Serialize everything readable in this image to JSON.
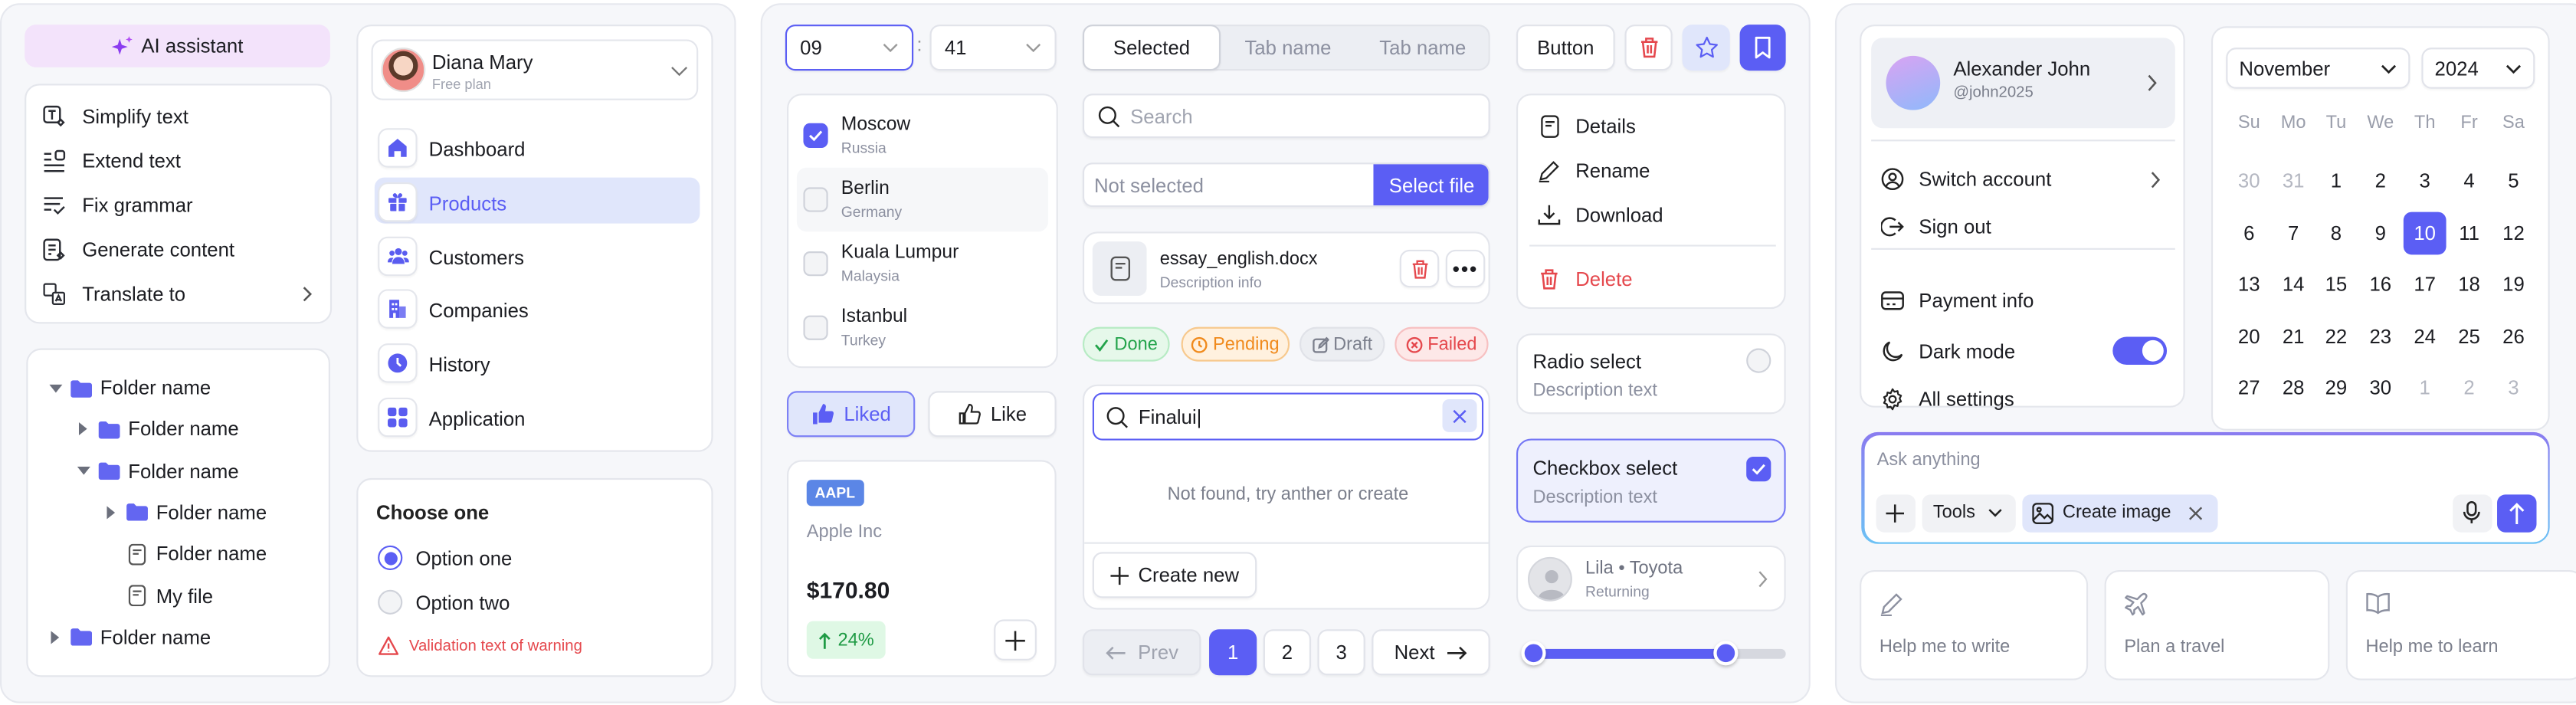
{
  "ai_assistant": {
    "button_label": "AI assistant",
    "menu": [
      {
        "label": "Simplify text",
        "icon": "text-simplify-icon"
      },
      {
        "label": "Extend text",
        "icon": "text-extend-icon"
      },
      {
        "label": "Fix grammar",
        "icon": "grammar-check-icon"
      },
      {
        "label": "Generate content",
        "icon": "document-sparkle-icon"
      },
      {
        "label": "Translate to",
        "icon": "translate-icon"
      }
    ]
  },
  "tree": [
    {
      "label": "Folder name",
      "type": "folder",
      "level": 0,
      "expanded": true
    },
    {
      "label": "Folder name",
      "type": "folder",
      "level": 1,
      "expanded": false
    },
    {
      "label": "Folder name",
      "type": "folder",
      "level": 1,
      "expanded": true
    },
    {
      "label": "Folder name",
      "type": "folder",
      "level": 2,
      "expanded": false
    },
    {
      "label": "Folder name",
      "type": "file",
      "level": 2
    },
    {
      "label": "My file",
      "type": "file",
      "level": 2
    },
    {
      "label": "Folder name",
      "type": "folder",
      "level": 0,
      "expanded": false
    }
  ],
  "profile": {
    "name": "Diana Mary",
    "plan": "Free plan"
  },
  "nav": [
    {
      "label": "Dashboard",
      "icon": "home-icon"
    },
    {
      "label": "Products",
      "icon": "gift-icon",
      "active": true
    },
    {
      "label": "Customers",
      "icon": "users-icon"
    },
    {
      "label": "Companies",
      "icon": "building-icon"
    },
    {
      "label": "History",
      "icon": "clock-icon"
    },
    {
      "label": "Application",
      "icon": "grid-icon"
    }
  ],
  "radio_group": {
    "title": "Choose one",
    "options": [
      "Option one",
      "Option two"
    ],
    "selected": 0,
    "warning": "Validation text of warning"
  },
  "time": {
    "hour": "09",
    "separator": ":",
    "minute": "41"
  },
  "cities": [
    {
      "name": "Moscow",
      "country": "Russia",
      "checked": true
    },
    {
      "name": "Berlin",
      "country": "Germany",
      "checked": false
    },
    {
      "name": "Kuala Lumpur",
      "country": "Malaysia",
      "checked": false
    },
    {
      "name": "Istanbul",
      "country": "Turkey",
      "checked": false
    }
  ],
  "likes": {
    "liked_label": "Liked",
    "like_label": "Like"
  },
  "stock": {
    "ticker": "AAPL",
    "company": "Apple Inc",
    "price": "$170.80",
    "change": "24%"
  },
  "tabs": [
    "Selected",
    "Tab name",
    "Tab name"
  ],
  "search": {
    "placeholder": "Search"
  },
  "file_input": {
    "value": "Not selected",
    "button": "Select file"
  },
  "file": {
    "name": "essay_english.docx",
    "description": "Description info"
  },
  "statuses": [
    {
      "label": "Done",
      "color": "#22a34a"
    },
    {
      "label": "Pending",
      "color": "#f08a1c"
    },
    {
      "label": "Draft",
      "color": "#7b7f8c"
    },
    {
      "label": "Failed",
      "color": "#e5484d"
    }
  ],
  "combobox": {
    "value": "Finalui|",
    "empty": "Not found, try anther or create",
    "create": "Create new"
  },
  "pagination": {
    "prev": "Prev",
    "pages": [
      "1",
      "2",
      "3"
    ],
    "current": "1",
    "next": "Next"
  },
  "toolbar": {
    "button_label": "Button"
  },
  "file_menu": {
    "items": [
      "Details",
      "Rename",
      "Download"
    ],
    "danger": "Delete"
  },
  "radio_select": {
    "title": "Radio select",
    "description": "Description text",
    "checked": false
  },
  "checkbox_select": {
    "title": "Checkbox select",
    "description": "Description text",
    "checked": true
  },
  "contact": {
    "name": "Lila • Toyota",
    "status": "Returning"
  },
  "range_slider": {
    "low": 0,
    "high": 76
  },
  "account": {
    "name": "Alexander John",
    "handle": "@john2025",
    "items": [
      "Switch account",
      "Sign out",
      "Payment info",
      "Dark mode",
      "All settings"
    ],
    "dark_mode": true
  },
  "calendar": {
    "month": "November",
    "year": "2024",
    "weekdays": [
      "Su",
      "Mo",
      "Tu",
      "We",
      "Th",
      "Fr",
      "Sa"
    ],
    "days": [
      "30",
      "31",
      "1",
      "2",
      "3",
      "4",
      "5",
      "6",
      "7",
      "8",
      "9",
      "10",
      "11",
      "12",
      "13",
      "14",
      "15",
      "16",
      "17",
      "18",
      "19",
      "20",
      "21",
      "22",
      "23",
      "24",
      "25",
      "26",
      "27",
      "28",
      "29",
      "30",
      "1",
      "2",
      "3"
    ],
    "outside": [
      0,
      1,
      32,
      33,
      34
    ],
    "selected": 11
  },
  "chat": {
    "placeholder": "Ask anything",
    "tools": "Tools",
    "chip": "Create image"
  },
  "suggestions": [
    "Help me to write",
    "Plan a travel",
    "Help me to learn"
  ],
  "colors": {
    "accent": "#5b5ef4",
    "accent_soft": "#e0e6fb",
    "danger": "#e5484d",
    "ai": "#f3e3fb"
  }
}
